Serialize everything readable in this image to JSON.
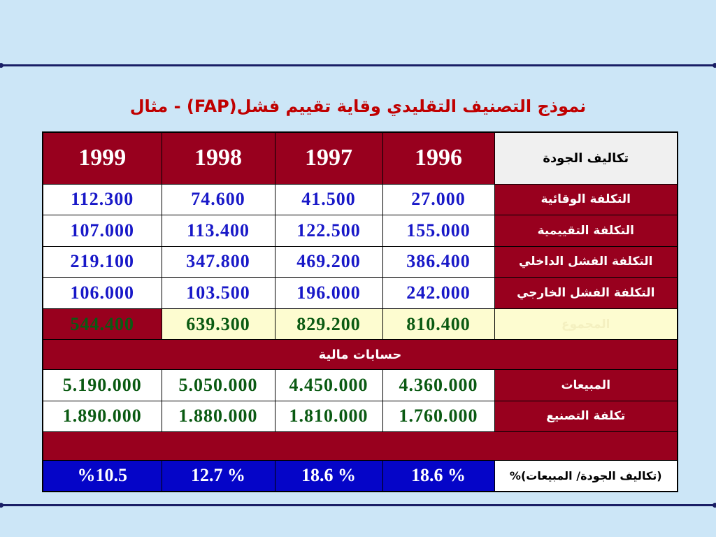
{
  "title": "نموذج التصنيف التقليدي وقاية تقييم فشل(FAP) - مثال",
  "table": {
    "header_label": "تكاليف الجودة",
    "years": [
      "1996",
      "1997",
      "1998",
      "1999"
    ],
    "cost_rows": [
      {
        "label": "التكلفة الوقائية",
        "values": [
          "27.000",
          "41.500",
          "74.600",
          "112.300"
        ]
      },
      {
        "label": "التكلفة التقييمية",
        "values": [
          "155.000",
          "122.500",
          "113.400",
          "107.000"
        ]
      },
      {
        "label": "التكلفة الفشل الداخلي",
        "values": [
          "386.400",
          "469.200",
          "347.800",
          "219.100"
        ]
      },
      {
        "label": "التكلفة الفشل الخارجي",
        "values": [
          "242.000",
          "196.000",
          "103.500",
          "106.000"
        ]
      }
    ],
    "total": {
      "label": "المجموع",
      "values": [
        "810.400",
        "829.200",
        "639.300",
        "544.400"
      ]
    },
    "section_label": "حسابات مالية",
    "financial_rows": [
      {
        "label": "المبيعات",
        "values": [
          "4.360.000",
          "4.450.000",
          "5.050.000",
          "5.190.000"
        ]
      },
      {
        "label": "تكلفة التصنيع",
        "values": [
          "1.760.000",
          "1.810.000",
          "1.880.000",
          "1.890.000"
        ]
      }
    ],
    "ratio": {
      "label": "(تكاليف الجودة/ المبيعات)%",
      "values": [
        "% 18.6",
        "% 18.6",
        "% 12.7",
        "%10.5"
      ]
    }
  },
  "colors": {
    "header_red": "#98001e",
    "percent_blue": "#0505c8",
    "total_yellow": "#fdfcd0",
    "background": "#cce6f7"
  }
}
